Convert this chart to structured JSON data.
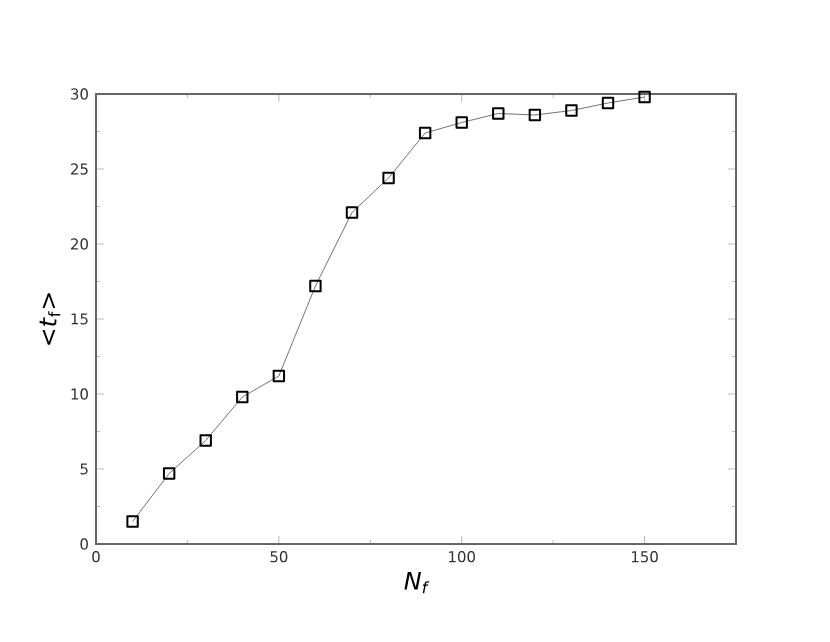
{
  "chart_data": {
    "type": "line",
    "xlabel": "N$_{f}$",
    "ylabel": "<*t*$_{f}$>",
    "x": [
      10,
      20,
      30,
      40,
      50,
      60,
      70,
      80,
      90,
      100,
      110,
      120,
      130,
      140,
      150
    ],
    "values": [
      1.5,
      4.7,
      6.9,
      9.8,
      11.2,
      17.2,
      22.1,
      24.4,
      27.4,
      28.1,
      28.7,
      28.6,
      28.9,
      29.4,
      29.8
    ],
    "color": "#000000",
    "marker": "square",
    "line_style": "solid",
    "xlim": [
      0,
      175
    ],
    "xticks": [
      0,
      50,
      100,
      150
    ],
    "ylim": [
      0,
      30
    ],
    "yticks": [
      0,
      5,
      10,
      15,
      20,
      25,
      30
    ]
  }
}
